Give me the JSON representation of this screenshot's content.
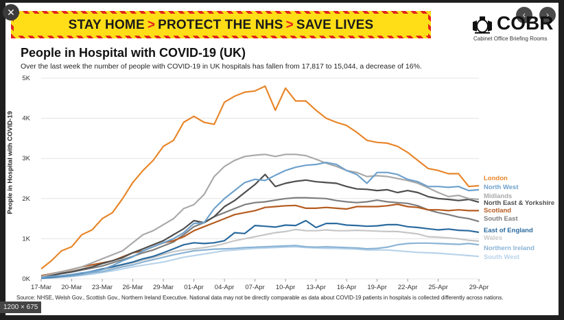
{
  "banner": {
    "part1": "STAY HOME",
    "part2": "PROTECT THE NHS",
    "part3": "SAVE LIVES",
    "sep": ">"
  },
  "logo": {
    "name": "COBR",
    "subtitle": "Cabinet Office Briefing Rooms"
  },
  "controls": {
    "close": "✕",
    "prev": "‹",
    "next": "›",
    "size": "1200 × 675"
  },
  "chart_data": {
    "type": "line",
    "title": "People in Hospital with COVID-19 (UK)",
    "subtitle": "Over the last week the number of people with COVID-19 in UK hospitals has fallen from 17,817 to 15,044, a decrease of 16%.",
    "ylabel": "People in Hospital with COVID-19",
    "xlabel": "",
    "ylim": [
      0,
      5000
    ],
    "yticks": [
      "0K",
      "1K",
      "2K",
      "3K",
      "4K",
      "5K"
    ],
    "x": [
      "17-Mar",
      "18-Mar",
      "19-Mar",
      "20-Mar",
      "21-Mar",
      "22-Mar",
      "23-Mar",
      "24-Mar",
      "25-Mar",
      "26-Mar",
      "27-Mar",
      "28-Mar",
      "29-Mar",
      "30-Mar",
      "31-Mar",
      "01-Apr",
      "02-Apr",
      "03-Apr",
      "04-Apr",
      "05-Apr",
      "06-Apr",
      "07-Apr",
      "08-Apr",
      "09-Apr",
      "10-Apr",
      "11-Apr",
      "12-Apr",
      "13-Apr",
      "14-Apr",
      "15-Apr",
      "16-Apr",
      "17-Apr",
      "18-Apr",
      "19-Apr",
      "20-Apr",
      "21-Apr",
      "22-Apr",
      "23-Apr",
      "24-Apr",
      "25-Apr",
      "26-Apr",
      "27-Apr",
      "28-Apr",
      "29-Apr"
    ],
    "xticks": [
      "17-Mar",
      "20-Mar",
      "23-Mar",
      "26-Mar",
      "29-Mar",
      "01-Apr",
      "04-Apr",
      "07-Apr",
      "10-Apr",
      "13-Apr",
      "16-Apr",
      "19-Apr",
      "22-Apr",
      "25-Apr",
      "29-Apr"
    ],
    "grid": true,
    "legend": "right",
    "series": [
      {
        "name": "London",
        "color": "#e8862a",
        "values": [
          250,
          450,
          700,
          800,
          1100,
          1220,
          1500,
          1650,
          2000,
          2400,
          2700,
          2950,
          3300,
          3450,
          3900,
          4050,
          3900,
          3850,
          4400,
          4550,
          4650,
          4680,
          4800,
          4200,
          4750,
          4430,
          4430,
          4200,
          4000,
          3900,
          3820,
          3650,
          3450,
          3400,
          3380,
          3300,
          3150,
          2950,
          2750,
          2700,
          2620,
          2620,
          2300,
          2320
        ]
      },
      {
        "name": "North West",
        "color": "#6ea1cc",
        "values": [
          30,
          60,
          80,
          110,
          150,
          180,
          230,
          330,
          450,
          550,
          700,
          800,
          900,
          1000,
          1150,
          1380,
          1400,
          1750,
          2000,
          2200,
          2400,
          2480,
          2450,
          2580,
          2700,
          2780,
          2830,
          2850,
          2900,
          2850,
          2700,
          2600,
          2380,
          2650,
          2650,
          2600,
          2480,
          2420,
          2300,
          2300,
          2280,
          2300,
          2200,
          2220
        ]
      },
      {
        "name": "Midlands",
        "color": "#a9a9a9",
        "values": [
          60,
          120,
          180,
          240,
          300,
          400,
          500,
          600,
          700,
          900,
          1100,
          1200,
          1350,
          1500,
          1750,
          1850,
          2100,
          2550,
          2800,
          2950,
          3050,
          3080,
          3100,
          3050,
          3100,
          3100,
          3070,
          2980,
          2880,
          2800,
          2700,
          2650,
          2550,
          2570,
          2550,
          2500,
          2450,
          2380,
          2270,
          2150,
          2050,
          2080,
          2000,
          1980
        ]
      },
      {
        "name": "North East & Yorkshire",
        "color": "#4d4d4d",
        "values": [
          40,
          80,
          140,
          180,
          240,
          300,
          380,
          450,
          530,
          650,
          750,
          850,
          950,
          1100,
          1250,
          1450,
          1400,
          1550,
          1800,
          1950,
          2150,
          2350,
          2600,
          2300,
          2380,
          2430,
          2460,
          2420,
          2400,
          2380,
          2300,
          2240,
          2230,
          2200,
          2220,
          2150,
          2200,
          2150,
          2050,
          2000,
          1980,
          1950,
          1980,
          1910
        ]
      },
      {
        "name": "Scotland",
        "color": "#b55a1e",
        "values": [
          80,
          130,
          180,
          230,
          300,
          350,
          400,
          450,
          550,
          650,
          700,
          800,
          900,
          950,
          1050,
          1200,
          1300,
          1400,
          1500,
          1600,
          1650,
          1700,
          1780,
          1800,
          1820,
          1830,
          1760,
          1760,
          1780,
          1760,
          1740,
          1800,
          1800,
          1800,
          1820,
          1860,
          1800,
          1780,
          1720,
          1720,
          1700,
          1720,
          1700,
          1700
        ]
      },
      {
        "name": "South East",
        "color": "#7d7d7d",
        "values": [
          40,
          90,
          130,
          170,
          220,
          270,
          320,
          400,
          480,
          560,
          650,
          720,
          820,
          920,
          1100,
          1300,
          1400,
          1550,
          1650,
          1750,
          1850,
          1900,
          1920,
          1960,
          2000,
          2020,
          2020,
          2010,
          2000,
          1950,
          1920,
          1900,
          1920,
          1960,
          1920,
          1900,
          1880,
          1820,
          1720,
          1650,
          1600,
          1540,
          1500,
          1430
        ]
      },
      {
        "name": "East of England",
        "color": "#2a6a9e",
        "values": [
          20,
          40,
          70,
          100,
          140,
          190,
          250,
          300,
          360,
          420,
          500,
          560,
          650,
          750,
          850,
          900,
          880,
          900,
          950,
          1150,
          1130,
          1330,
          1310,
          1290,
          1340,
          1330,
          1450,
          1280,
          1380,
          1380,
          1340,
          1330,
          1310,
          1320,
          1350,
          1350,
          1300,
          1280,
          1250,
          1220,
          1240,
          1210,
          1200,
          1160
        ]
      },
      {
        "name": "Wales",
        "color": "#c6c6c6",
        "values": [
          20,
          40,
          70,
          100,
          140,
          180,
          230,
          280,
          340,
          400,
          470,
          530,
          610,
          680,
          720,
          750,
          780,
          820,
          880,
          950,
          1000,
          1050,
          1100,
          1150,
          1180,
          1230,
          1200,
          1200,
          1220,
          1200,
          1200,
          1210,
          1200,
          1190,
          1180,
          1180,
          1150,
          1120,
          1050,
          1040,
          1020,
          1000,
          960,
          940
        ]
      },
      {
        "name": "Northern Ireland",
        "color": "#8ab3d5",
        "values": [
          10,
          30,
          50,
          70,
          100,
          150,
          180,
          240,
          300,
          350,
          420,
          480,
          540,
          600,
          650,
          700,
          720,
          740,
          750,
          760,
          780,
          790,
          800,
          810,
          820,
          830,
          800,
          790,
          800,
          790,
          780,
          770,
          750,
          760,
          790,
          850,
          880,
          890,
          890,
          880,
          870,
          860,
          880,
          850
        ]
      },
      {
        "name": "South West",
        "color": "#b8d3ea",
        "values": [
          10,
          20,
          40,
          60,
          90,
          120,
          160,
          200,
          250,
          300,
          340,
          380,
          420,
          480,
          540,
          580,
          620,
          660,
          700,
          720,
          740,
          760,
          770,
          780,
          790,
          800,
          780,
          770,
          760,
          760,
          750,
          740,
          720,
          720,
          720,
          700,
          680,
          660,
          650,
          640,
          620,
          600,
          580,
          560
        ]
      }
    ]
  }
}
